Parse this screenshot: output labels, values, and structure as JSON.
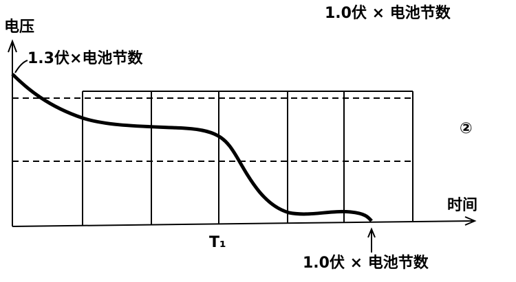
{
  "labels": {
    "top_note": "1.0伏 × 电池节数",
    "y_axis": "电压",
    "start_note": "1.3伏×电池节数",
    "figure_number": "②",
    "x_axis": "时间",
    "t1": "T₁",
    "end_note": "1.0伏 × 电池节数"
  }
}
